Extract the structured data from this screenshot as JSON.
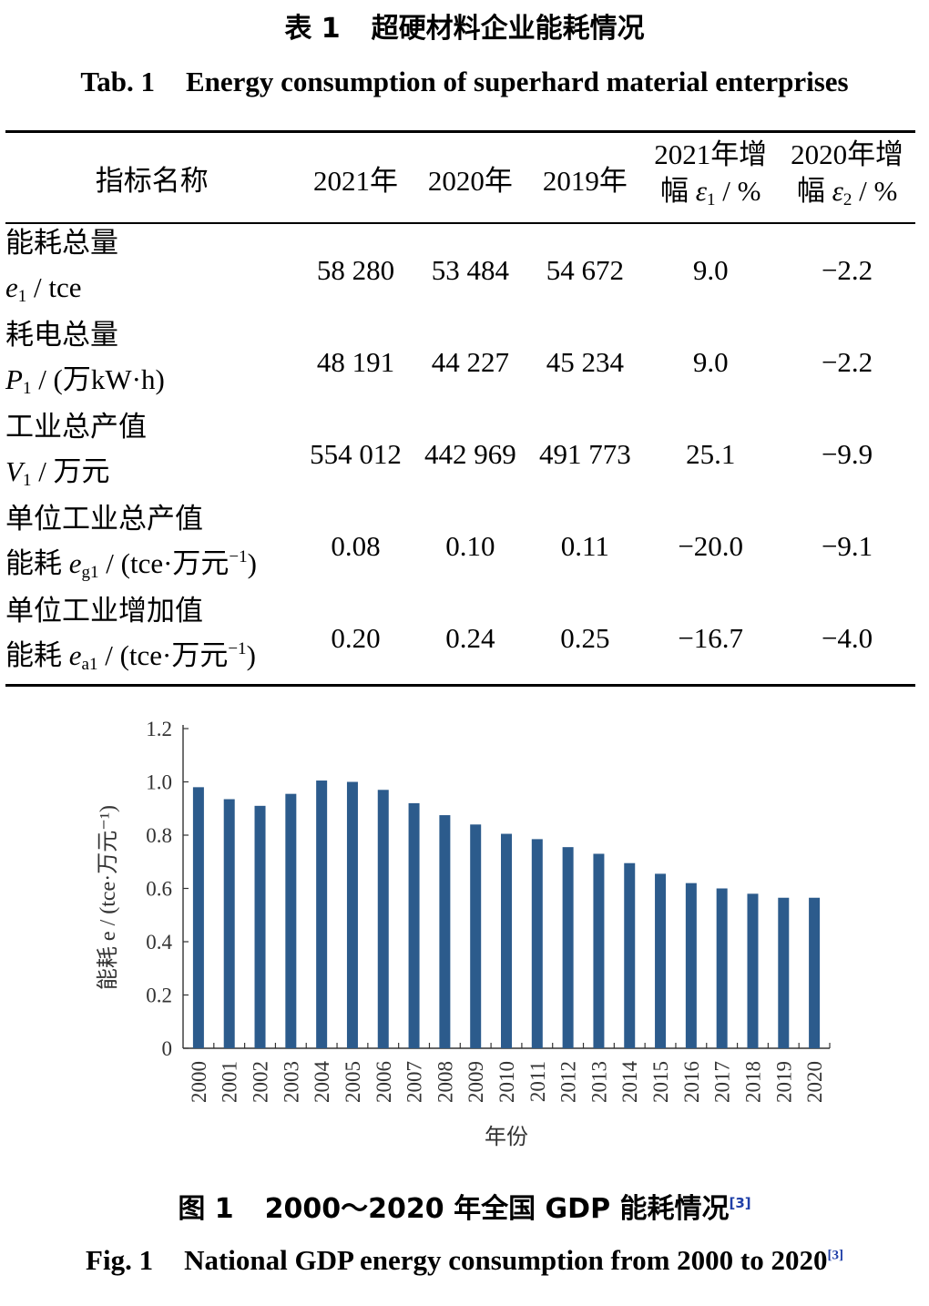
{
  "table": {
    "caption_cn_label": "表 1",
    "caption_cn_title": "超硬材料企业能耗情况",
    "caption_en_label": "Tab. 1",
    "caption_en_title": "Energy consumption of superhard material enterprises",
    "headers": {
      "name": "指标名称",
      "y2021": "2021年",
      "y2020": "2020年",
      "y2019": "2019年",
      "inc2021_line1": "2021年增",
      "inc2021_line2_prefix": "幅 ",
      "inc2021_symbol": "ε",
      "inc2021_sub": "1",
      "inc2021_unit": " / %",
      "inc2020_line1": "2020年增",
      "inc2020_line2_prefix": "幅 ",
      "inc2020_symbol": "ε",
      "inc2020_sub": "2",
      "inc2020_unit": " / %"
    },
    "rows": [
      {
        "name1": "能耗总量",
        "name2_pre": "",
        "symbol": "e",
        "symbol_sub": "1",
        "unit": " / tce",
        "unit_sup": "",
        "unit_end": "",
        "v2021": "58 280",
        "v2020": "53 484",
        "v2019": "54 672",
        "inc2021": "9.0",
        "inc2020": "−2.2"
      },
      {
        "name1": "耗电总量",
        "name2_pre": "",
        "symbol": "P",
        "symbol_sub": "1",
        "unit": " / (万kW·h)",
        "unit_sup": "",
        "unit_end": "",
        "v2021": "48 191",
        "v2020": "44 227",
        "v2019": "45 234",
        "inc2021": "9.0",
        "inc2020": "−2.2"
      },
      {
        "name1": "工业总产值",
        "name2_pre": "",
        "symbol": "V",
        "symbol_sub": "1",
        "unit": " / 万元",
        "unit_sup": "",
        "unit_end": "",
        "v2021": "554 012",
        "v2020": "442 969",
        "v2019": "491 773",
        "inc2021": "25.1",
        "inc2020": "−9.9"
      },
      {
        "name1": "单位工业总产值",
        "name2_pre": "能耗 ",
        "symbol": "e",
        "symbol_sub": "g1",
        "unit": " / (tce·万元",
        "unit_sup": "−1",
        "unit_end": ")",
        "v2021": "0.08",
        "v2020": "0.10",
        "v2019": "0.11",
        "inc2021": "−20.0",
        "inc2020": "−9.1"
      },
      {
        "name1": "单位工业增加值",
        "name2_pre": "能耗 ",
        "symbol": "e",
        "symbol_sub": "a1",
        "unit": " / (tce·万元",
        "unit_sup": "−1",
        "unit_end": ")",
        "v2021": "0.20",
        "v2020": "0.24",
        "v2019": "0.25",
        "inc2021": "−16.7",
        "inc2020": "−4.0"
      }
    ]
  },
  "figure": {
    "caption_cn_label": "图 1",
    "caption_cn_title": "2000～2020 年全国 GDP 能耗情况",
    "caption_en_label": "Fig. 1",
    "caption_en_title": "National GDP energy consumption from 2000 to 2020",
    "ref": "[3]"
  },
  "chart_data": {
    "type": "bar",
    "categories": [
      "2000",
      "2001",
      "2002",
      "2003",
      "2004",
      "2005",
      "2006",
      "2007",
      "2008",
      "2009",
      "2010",
      "2011",
      "2012",
      "2013",
      "2014",
      "2015",
      "2016",
      "2017",
      "2018",
      "2019",
      "2020"
    ],
    "values": [
      0.98,
      0.935,
      0.91,
      0.955,
      1.005,
      1.0,
      0.97,
      0.92,
      0.875,
      0.84,
      0.805,
      0.785,
      0.755,
      0.73,
      0.695,
      0.655,
      0.62,
      0.6,
      0.58,
      0.565,
      0.565
    ],
    "xlabel": "年份",
    "ylabel": "能耗 e / (tce·万元⁻¹)",
    "ylim": [
      0,
      1.2
    ],
    "yticks": [
      "0",
      "0.2",
      "0.4",
      "0.6",
      "0.8",
      "1.0",
      "1.2"
    ],
    "bar_color": "#2c5b8c",
    "grid": false
  }
}
